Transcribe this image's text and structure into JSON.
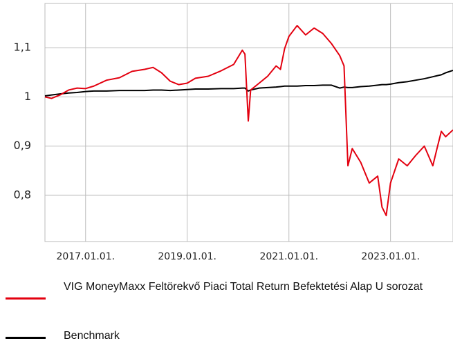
{
  "chart_data": {
    "type": "line",
    "x": [
      "2016-03-15",
      "2016-05-01",
      "2016-07-01",
      "2016-09-01",
      "2016-11-01",
      "2017-01-01",
      "2017-03-01",
      "2017-06-01",
      "2017-09-01",
      "2017-12-01",
      "2018-03-01",
      "2018-05-01",
      "2018-07-01",
      "2018-09-01",
      "2018-11-01",
      "2019-01-01",
      "2019-03-01",
      "2019-06-01",
      "2019-09-01",
      "2019-12-01",
      "2020-02-01",
      "2020-02-20",
      "2020-03-15",
      "2020-04-01",
      "2020-06-01",
      "2020-08-01",
      "2020-10-01",
      "2020-11-01",
      "2020-12-01",
      "2021-01-01",
      "2021-03-01",
      "2021-05-01",
      "2021-07-01",
      "2021-09-01",
      "2021-11-01",
      "2022-01-01",
      "2022-02-01",
      "2022-03-01",
      "2022-04-01",
      "2022-06-01",
      "2022-08-01",
      "2022-10-01",
      "2022-11-01",
      "2022-12-01",
      "2023-01-01",
      "2023-03-01",
      "2023-05-01",
      "2023-07-01",
      "2023-09-01",
      "2023-11-01",
      "2023-12-01",
      "2024-01-01",
      "2024-02-01",
      "2024-03-25"
    ],
    "series": [
      {
        "name": "VIG MoneyMaxx Feltörekvő Piaci Total Return Befektetési Alap U sorozat",
        "color": "#e3000f",
        "values": [
          1.0,
          0.997,
          1.004,
          1.014,
          1.018,
          1.017,
          1.022,
          1.034,
          1.039,
          1.052,
          1.056,
          1.06,
          1.049,
          1.032,
          1.025,
          1.028,
          1.038,
          1.042,
          1.053,
          1.066,
          1.095,
          1.087,
          0.951,
          1.014,
          1.028,
          1.042,
          1.063,
          1.056,
          1.098,
          1.123,
          1.145,
          1.126,
          1.14,
          1.129,
          1.109,
          1.084,
          1.063,
          0.86,
          0.895,
          0.867,
          0.825,
          0.839,
          0.776,
          0.759,
          0.825,
          0.874,
          0.86,
          0.881,
          0.9,
          0.86,
          0.895,
          0.93,
          0.919,
          0.933
        ]
      },
      {
        "name": "Benchmark",
        "color": "#000000",
        "values": [
          1.002,
          1.004,
          1.006,
          1.008,
          1.009,
          1.011,
          1.012,
          1.012,
          1.013,
          1.013,
          1.013,
          1.014,
          1.014,
          1.013,
          1.014,
          1.015,
          1.016,
          1.016,
          1.017,
          1.017,
          1.018,
          1.018,
          1.012,
          1.014,
          1.018,
          1.019,
          1.02,
          1.021,
          1.022,
          1.022,
          1.022,
          1.023,
          1.023,
          1.024,
          1.024,
          1.018,
          1.02,
          1.019,
          1.019,
          1.021,
          1.022,
          1.024,
          1.025,
          1.025,
          1.026,
          1.029,
          1.031,
          1.034,
          1.037,
          1.041,
          1.043,
          1.045,
          1.049,
          1.054
        ]
      }
    ],
    "xlim": [
      "2016-03-15",
      "2024-03-25"
    ],
    "xticks": [
      {
        "value": "2017-01-01",
        "label": "2017.01.01."
      },
      {
        "value": "2019-01-01",
        "label": "2019.01.01."
      },
      {
        "value": "2021-01-01",
        "label": "2021.01.01."
      },
      {
        "value": "2023-01-01",
        "label": "2023.01.01."
      }
    ],
    "ylim": [
      0.706,
      1.19
    ],
    "yticks": [
      {
        "value": 0.8,
        "label": "0,8"
      },
      {
        "value": 0.9,
        "label": "0,9"
      },
      1,
      {
        "value": 1.1,
        "label": "1,1"
      }
    ],
    "grid": true
  }
}
